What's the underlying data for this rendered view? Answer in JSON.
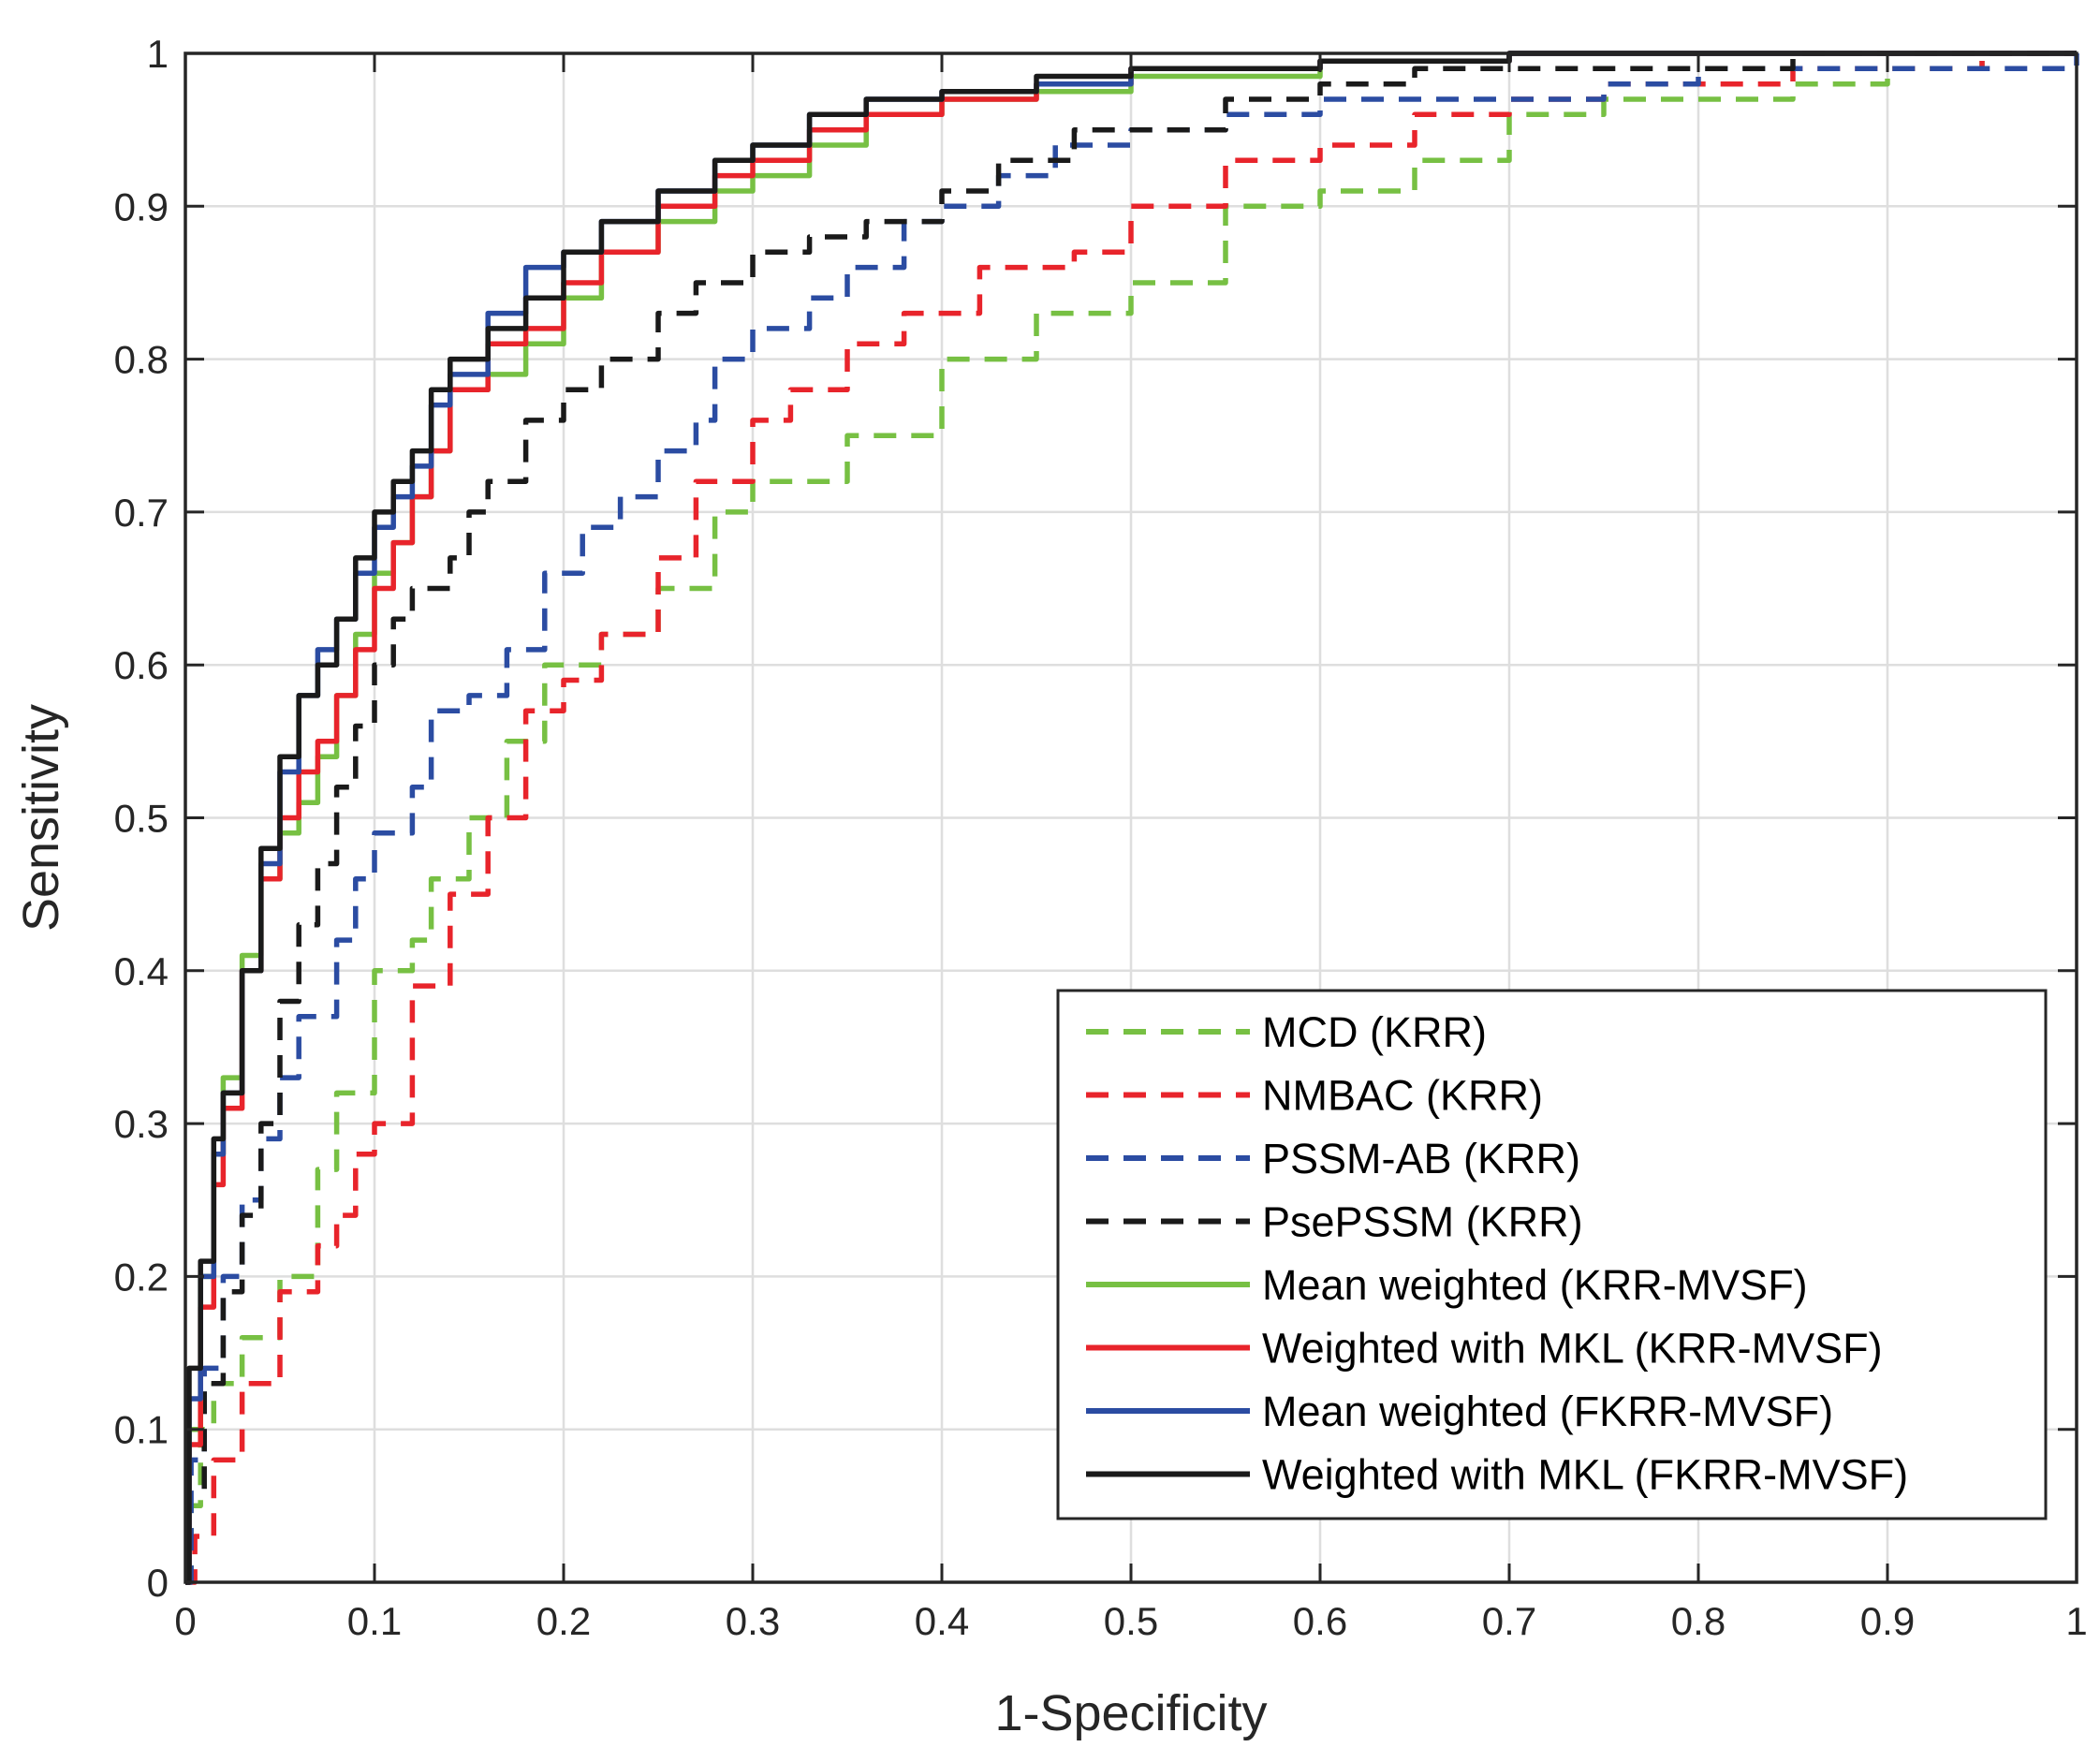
{
  "chart_data": {
    "type": "line",
    "title": "",
    "xlabel": "1-Specificity",
    "ylabel": "Sensitivity",
    "xlim": [
      0,
      1
    ],
    "ylim": [
      0,
      1
    ],
    "grid": true,
    "legend_position": "bottom-right",
    "xticks": [
      0,
      0.1,
      0.2,
      0.3,
      0.4,
      0.5,
      0.6,
      0.7,
      0.8,
      0.9,
      1
    ],
    "xtick_labels": [
      "0",
      "0.1",
      "0.2",
      "0.3",
      "0.4",
      "0.5",
      "0.6",
      "0.7",
      "0.8",
      "0.9",
      "1"
    ],
    "yticks": [
      0,
      0.1,
      0.2,
      0.3,
      0.4,
      0.5,
      0.6,
      0.7,
      0.8,
      0.9,
      1
    ],
    "ytick_labels": [
      "0",
      "0.1",
      "0.2",
      "0.3",
      "0.4",
      "0.5",
      "0.6",
      "0.7",
      "0.8",
      "0.9",
      "1"
    ],
    "series": [
      {
        "name": "MCD (KRR)",
        "color": "#77c043",
        "style": "dashed",
        "points": [
          [
            0,
            0
          ],
          [
            0.003,
            0.05
          ],
          [
            0.008,
            0.1
          ],
          [
            0.015,
            0.13
          ],
          [
            0.03,
            0.16
          ],
          [
            0.05,
            0.2
          ],
          [
            0.07,
            0.27
          ],
          [
            0.08,
            0.32
          ],
          [
            0.1,
            0.4
          ],
          [
            0.12,
            0.42
          ],
          [
            0.13,
            0.46
          ],
          [
            0.15,
            0.5
          ],
          [
            0.17,
            0.55
          ],
          [
            0.19,
            0.6
          ],
          [
            0.22,
            0.62
          ],
          [
            0.25,
            0.65
          ],
          [
            0.28,
            0.7
          ],
          [
            0.3,
            0.72
          ],
          [
            0.35,
            0.75
          ],
          [
            0.4,
            0.8
          ],
          [
            0.45,
            0.83
          ],
          [
            0.5,
            0.85
          ],
          [
            0.55,
            0.9
          ],
          [
            0.6,
            0.91
          ],
          [
            0.65,
            0.93
          ],
          [
            0.7,
            0.96
          ],
          [
            0.75,
            0.97
          ],
          [
            0.8,
            0.97
          ],
          [
            0.85,
            0.98
          ],
          [
            0.9,
            0.99
          ],
          [
            0.95,
            1.0
          ],
          [
            1,
            1
          ]
        ]
      },
      {
        "name": "NMBAC (KRR)",
        "color": "#e8242b",
        "style": "dashed",
        "points": [
          [
            0,
            0
          ],
          [
            0.005,
            0.03
          ],
          [
            0.015,
            0.08
          ],
          [
            0.03,
            0.13
          ],
          [
            0.05,
            0.19
          ],
          [
            0.07,
            0.22
          ],
          [
            0.08,
            0.24
          ],
          [
            0.09,
            0.28
          ],
          [
            0.1,
            0.3
          ],
          [
            0.12,
            0.39
          ],
          [
            0.14,
            0.45
          ],
          [
            0.16,
            0.5
          ],
          [
            0.18,
            0.57
          ],
          [
            0.2,
            0.59
          ],
          [
            0.22,
            0.62
          ],
          [
            0.25,
            0.67
          ],
          [
            0.27,
            0.72
          ],
          [
            0.3,
            0.76
          ],
          [
            0.32,
            0.78
          ],
          [
            0.35,
            0.81
          ],
          [
            0.38,
            0.83
          ],
          [
            0.42,
            0.86
          ],
          [
            0.47,
            0.87
          ],
          [
            0.5,
            0.9
          ],
          [
            0.55,
            0.93
          ],
          [
            0.6,
            0.94
          ],
          [
            0.65,
            0.96
          ],
          [
            0.7,
            0.97
          ],
          [
            0.75,
            0.98
          ],
          [
            0.8,
            0.98
          ],
          [
            0.85,
            0.99
          ],
          [
            0.9,
            0.99
          ],
          [
            0.95,
            1.0
          ],
          [
            1,
            1
          ]
        ]
      },
      {
        "name": "PSSM-AB (KRR)",
        "color": "#2b4ca2",
        "style": "dashed",
        "points": [
          [
            0,
            0
          ],
          [
            0.003,
            0.08
          ],
          [
            0.01,
            0.14
          ],
          [
            0.02,
            0.2
          ],
          [
            0.03,
            0.25
          ],
          [
            0.04,
            0.29
          ],
          [
            0.05,
            0.33
          ],
          [
            0.06,
            0.37
          ],
          [
            0.08,
            0.42
          ],
          [
            0.09,
            0.46
          ],
          [
            0.1,
            0.49
          ],
          [
            0.12,
            0.52
          ],
          [
            0.13,
            0.57
          ],
          [
            0.15,
            0.58
          ],
          [
            0.17,
            0.61
          ],
          [
            0.19,
            0.66
          ],
          [
            0.21,
            0.69
          ],
          [
            0.23,
            0.71
          ],
          [
            0.25,
            0.74
          ],
          [
            0.27,
            0.76
          ],
          [
            0.28,
            0.8
          ],
          [
            0.3,
            0.82
          ],
          [
            0.33,
            0.84
          ],
          [
            0.35,
            0.86
          ],
          [
            0.38,
            0.89
          ],
          [
            0.4,
            0.9
          ],
          [
            0.43,
            0.92
          ],
          [
            0.46,
            0.94
          ],
          [
            0.5,
            0.95
          ],
          [
            0.55,
            0.96
          ],
          [
            0.6,
            0.97
          ],
          [
            0.65,
            0.97
          ],
          [
            0.7,
            0.97
          ],
          [
            0.75,
            0.98
          ],
          [
            0.8,
            0.99
          ],
          [
            0.9,
            0.99
          ],
          [
            1,
            1
          ]
        ]
      },
      {
        "name": "PsePSSM (KRR)",
        "color": "#1a1a1a",
        "style": "dashed",
        "points": [
          [
            0,
            0
          ],
          [
            0.002,
            0.06
          ],
          [
            0.01,
            0.13
          ],
          [
            0.02,
            0.19
          ],
          [
            0.03,
            0.24
          ],
          [
            0.04,
            0.3
          ],
          [
            0.05,
            0.38
          ],
          [
            0.06,
            0.43
          ],
          [
            0.07,
            0.47
          ],
          [
            0.08,
            0.52
          ],
          [
            0.09,
            0.56
          ],
          [
            0.1,
            0.6
          ],
          [
            0.11,
            0.63
          ],
          [
            0.12,
            0.65
          ],
          [
            0.14,
            0.67
          ],
          [
            0.15,
            0.7
          ],
          [
            0.16,
            0.72
          ],
          [
            0.18,
            0.76
          ],
          [
            0.2,
            0.78
          ],
          [
            0.22,
            0.8
          ],
          [
            0.25,
            0.83
          ],
          [
            0.27,
            0.85
          ],
          [
            0.3,
            0.87
          ],
          [
            0.33,
            0.88
          ],
          [
            0.36,
            0.89
          ],
          [
            0.4,
            0.91
          ],
          [
            0.43,
            0.93
          ],
          [
            0.47,
            0.95
          ],
          [
            0.5,
            0.95
          ],
          [
            0.55,
            0.97
          ],
          [
            0.6,
            0.98
          ],
          [
            0.65,
            0.99
          ],
          [
            0.75,
            0.99
          ],
          [
            0.85,
            1.0
          ],
          [
            1,
            1
          ]
        ]
      },
      {
        "name": "Mean weighted (KRR-MVSF)",
        "color": "#77c043",
        "style": "solid",
        "points": [
          [
            0,
            0
          ],
          [
            0.002,
            0.1
          ],
          [
            0.008,
            0.2
          ],
          [
            0.015,
            0.28
          ],
          [
            0.02,
            0.33
          ],
          [
            0.03,
            0.41
          ],
          [
            0.04,
            0.46
          ],
          [
            0.05,
            0.49
          ],
          [
            0.06,
            0.51
          ],
          [
            0.07,
            0.54
          ],
          [
            0.08,
            0.58
          ],
          [
            0.09,
            0.62
          ],
          [
            0.1,
            0.66
          ],
          [
            0.11,
            0.68
          ],
          [
            0.12,
            0.71
          ],
          [
            0.13,
            0.74
          ],
          [
            0.14,
            0.78
          ],
          [
            0.16,
            0.79
          ],
          [
            0.18,
            0.81
          ],
          [
            0.2,
            0.84
          ],
          [
            0.22,
            0.87
          ],
          [
            0.25,
            0.89
          ],
          [
            0.28,
            0.91
          ],
          [
            0.3,
            0.92
          ],
          [
            0.33,
            0.94
          ],
          [
            0.36,
            0.96
          ],
          [
            0.4,
            0.97
          ],
          [
            0.45,
            0.975
          ],
          [
            0.5,
            0.985
          ],
          [
            0.6,
            0.995
          ],
          [
            0.7,
            1.0
          ],
          [
            1,
            1
          ]
        ]
      },
      {
        "name": "Weighted with MKL (KRR-MVSF)",
        "color": "#e8242b",
        "style": "solid",
        "points": [
          [
            0,
            0
          ],
          [
            0.002,
            0.09
          ],
          [
            0.008,
            0.18
          ],
          [
            0.015,
            0.26
          ],
          [
            0.02,
            0.31
          ],
          [
            0.03,
            0.4
          ],
          [
            0.04,
            0.46
          ],
          [
            0.05,
            0.5
          ],
          [
            0.06,
            0.53
          ],
          [
            0.07,
            0.55
          ],
          [
            0.08,
            0.58
          ],
          [
            0.09,
            0.61
          ],
          [
            0.1,
            0.65
          ],
          [
            0.11,
            0.68
          ],
          [
            0.12,
            0.71
          ],
          [
            0.13,
            0.74
          ],
          [
            0.14,
            0.78
          ],
          [
            0.16,
            0.81
          ],
          [
            0.18,
            0.82
          ],
          [
            0.2,
            0.85
          ],
          [
            0.22,
            0.87
          ],
          [
            0.25,
            0.9
          ],
          [
            0.28,
            0.92
          ],
          [
            0.3,
            0.93
          ],
          [
            0.33,
            0.95
          ],
          [
            0.36,
            0.96
          ],
          [
            0.4,
            0.97
          ],
          [
            0.45,
            0.98
          ],
          [
            0.5,
            0.99
          ],
          [
            0.6,
            0.995
          ],
          [
            0.7,
            1.0
          ],
          [
            1,
            1
          ]
        ]
      },
      {
        "name": "Mean weighted (FKRR-MVSF)",
        "color": "#2b4ca2",
        "style": "solid",
        "points": [
          [
            0,
            0
          ],
          [
            0.002,
            0.12
          ],
          [
            0.008,
            0.2
          ],
          [
            0.015,
            0.28
          ],
          [
            0.02,
            0.32
          ],
          [
            0.03,
            0.4
          ],
          [
            0.04,
            0.47
          ],
          [
            0.05,
            0.53
          ],
          [
            0.06,
            0.58
          ],
          [
            0.07,
            0.61
          ],
          [
            0.08,
            0.63
          ],
          [
            0.09,
            0.66
          ],
          [
            0.1,
            0.69
          ],
          [
            0.11,
            0.71
          ],
          [
            0.12,
            0.73
          ],
          [
            0.13,
            0.77
          ],
          [
            0.14,
            0.79
          ],
          [
            0.16,
            0.83
          ],
          [
            0.18,
            0.86
          ],
          [
            0.2,
            0.87
          ],
          [
            0.22,
            0.89
          ],
          [
            0.25,
            0.91
          ],
          [
            0.28,
            0.93
          ],
          [
            0.3,
            0.94
          ],
          [
            0.33,
            0.96
          ],
          [
            0.36,
            0.97
          ],
          [
            0.4,
            0.975
          ],
          [
            0.45,
            0.98
          ],
          [
            0.5,
            0.99
          ],
          [
            0.6,
            0.995
          ],
          [
            0.7,
            1.0
          ],
          [
            1,
            1
          ]
        ]
      },
      {
        "name": "Weighted with MKL (FKRR-MVSF)",
        "color": "#1a1a1a",
        "style": "solid",
        "points": [
          [
            0,
            0
          ],
          [
            0.002,
            0.14
          ],
          [
            0.008,
            0.21
          ],
          [
            0.015,
            0.29
          ],
          [
            0.02,
            0.32
          ],
          [
            0.03,
            0.4
          ],
          [
            0.04,
            0.48
          ],
          [
            0.05,
            0.54
          ],
          [
            0.06,
            0.58
          ],
          [
            0.07,
            0.6
          ],
          [
            0.08,
            0.63
          ],
          [
            0.09,
            0.67
          ],
          [
            0.1,
            0.7
          ],
          [
            0.11,
            0.72
          ],
          [
            0.12,
            0.74
          ],
          [
            0.13,
            0.78
          ],
          [
            0.14,
            0.8
          ],
          [
            0.16,
            0.82
          ],
          [
            0.18,
            0.84
          ],
          [
            0.2,
            0.87
          ],
          [
            0.22,
            0.89
          ],
          [
            0.25,
            0.91
          ],
          [
            0.28,
            0.93
          ],
          [
            0.3,
            0.94
          ],
          [
            0.33,
            0.96
          ],
          [
            0.36,
            0.97
          ],
          [
            0.4,
            0.975
          ],
          [
            0.45,
            0.985
          ],
          [
            0.5,
            0.99
          ],
          [
            0.6,
            0.995
          ],
          [
            0.7,
            1.0
          ],
          [
            1,
            1
          ]
        ]
      }
    ]
  }
}
